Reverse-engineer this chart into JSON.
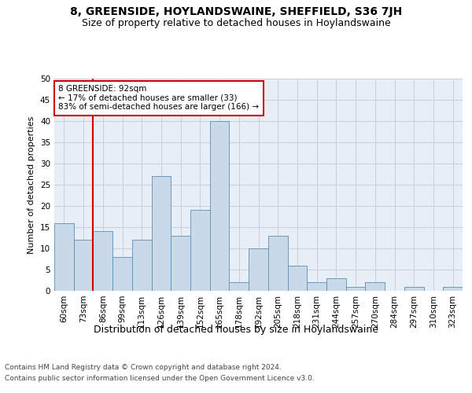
{
  "title": "8, GREENSIDE, HOYLANDSWAINE, SHEFFIELD, S36 7JH",
  "subtitle": "Size of property relative to detached houses in Hoylandswaine",
  "xlabel": "Distribution of detached houses by size in Hoylandswaine",
  "ylabel": "Number of detached properties",
  "categories": [
    "60sqm",
    "73sqm",
    "86sqm",
    "99sqm",
    "113sqm",
    "126sqm",
    "139sqm",
    "152sqm",
    "165sqm",
    "178sqm",
    "192sqm",
    "205sqm",
    "218sqm",
    "231sqm",
    "244sqm",
    "257sqm",
    "270sqm",
    "284sqm",
    "297sqm",
    "310sqm",
    "323sqm"
  ],
  "values": [
    16,
    12,
    14,
    8,
    12,
    27,
    13,
    19,
    40,
    2,
    10,
    13,
    6,
    2,
    3,
    1,
    2,
    0,
    1,
    0,
    1
  ],
  "bar_color": "#c9d9e8",
  "bar_edge_color": "#5b8db8",
  "grid_color": "#c8d0dc",
  "background_color": "#e8eef5",
  "ylim": [
    0,
    50
  ],
  "yticks": [
    0,
    5,
    10,
    15,
    20,
    25,
    30,
    35,
    40,
    45,
    50
  ],
  "annotation_box_text": "8 GREENSIDE: 92sqm\n← 17% of detached houses are smaller (33)\n83% of semi-detached houses are larger (166) →",
  "annotation_box_color": "#ffffff",
  "annotation_box_edge_color": "#cc0000",
  "vline_x": 1.5,
  "vline_color": "#cc0000",
  "footer_line1": "Contains HM Land Registry data © Crown copyright and database right 2024.",
  "footer_line2": "Contains public sector information licensed under the Open Government Licence v3.0.",
  "title_fontsize": 10,
  "subtitle_fontsize": 9,
  "xlabel_fontsize": 9,
  "ylabel_fontsize": 8,
  "tick_fontsize": 7.5,
  "footer_fontsize": 6.5
}
